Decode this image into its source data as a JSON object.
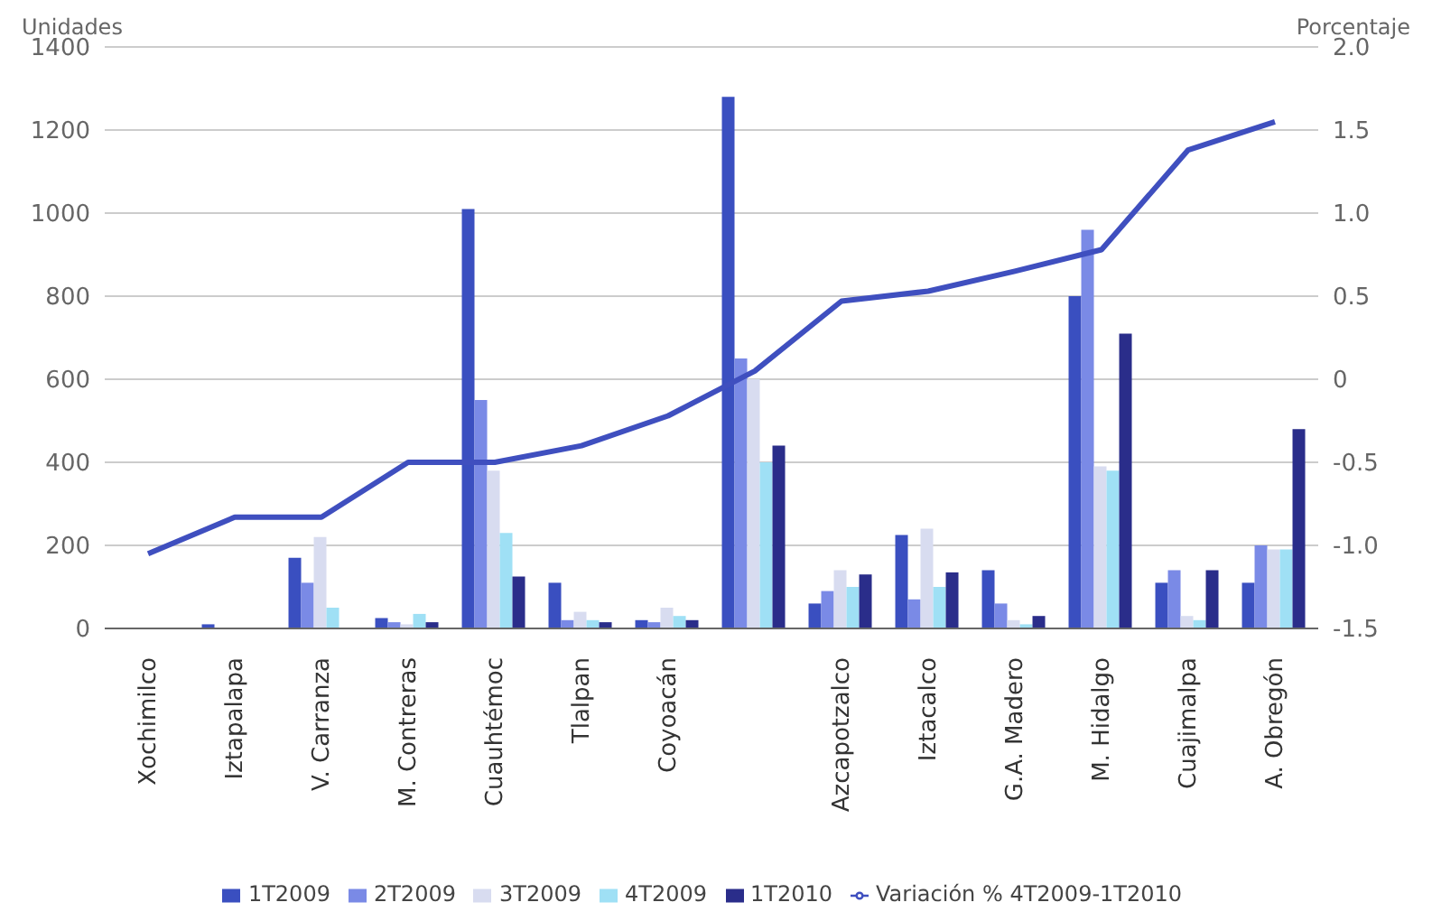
{
  "chart_data": {
    "type": "bar",
    "ylabel": "Unidades",
    "y2label": "Porcentaje",
    "categories": [
      "Xochimilco",
      "Iztapalapa",
      "V. Carranza",
      "M. Contreras",
      "Cuauhtémoc",
      "Tlalpan",
      "Coyoacán",
      null,
      "Azcapotzalco",
      "Iztacalco",
      "G.A. Madero",
      "M. Hidalgo",
      "Cuajimalpa",
      "A. Obregón"
    ],
    "series": [
      {
        "name": "1T2009",
        "color": "#3a4fc0",
        "values": [
          0,
          10,
          170,
          25,
          1010,
          110,
          20,
          1280,
          60,
          225,
          140,
          800,
          110,
          110
        ]
      },
      {
        "name": "2T2009",
        "color": "#7a8ae6",
        "values": [
          0,
          null,
          110,
          15,
          550,
          20,
          15,
          650,
          90,
          70,
          60,
          960,
          140,
          200
        ]
      },
      {
        "name": "3T2009",
        "color": "#d8dcf0",
        "values": [
          0,
          null,
          220,
          10,
          380,
          40,
          50,
          600,
          140,
          240,
          20,
          390,
          30,
          190
        ]
      },
      {
        "name": "4T2009",
        "color": "#9fe0f5",
        "values": [
          0,
          0,
          50,
          35,
          230,
          20,
          30,
          400,
          100,
          100,
          10,
          380,
          20,
          190
        ]
      },
      {
        "name": "1T2010",
        "color": "#2a2d8a",
        "values": [
          0,
          0,
          0,
          15,
          125,
          15,
          20,
          440,
          130,
          135,
          30,
          710,
          140,
          480
        ]
      },
      {
        "name": "Variación % 4T2009-1T2010",
        "type": "line",
        "axis": "y2",
        "color": "#3f4fbf",
        "values": [
          -1.05,
          -0.83,
          -0.83,
          -0.5,
          -0.5,
          -0.4,
          -0.22,
          0.05,
          0.47,
          0.53,
          0.65,
          0.78,
          1.38,
          1.55
        ]
      }
    ],
    "ylim": [
      0,
      1400
    ],
    "yticks": [
      0,
      200,
      400,
      600,
      800,
      1000,
      1200,
      1400
    ],
    "y2lim": [
      -1.5,
      2
    ],
    "y2ticks": [
      {
        "value": -1.5,
        "label": "-1.5"
      },
      {
        "value": -1,
        "label": "-1.0"
      },
      -0.5,
      0,
      0.5,
      {
        "value": 1,
        "label": "1.0"
      },
      1.5,
      {
        "value": 2,
        "label": "2.0"
      }
    ],
    "grid": "y",
    "legend": "bottom",
    "marker": "none"
  }
}
